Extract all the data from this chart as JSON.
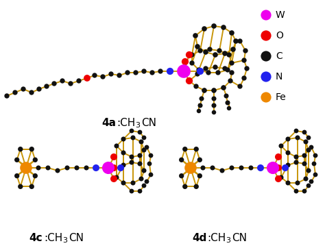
{
  "background_color": "#ffffff",
  "legend_items": [
    {
      "label": "W",
      "color": "#ee00ee"
    },
    {
      "label": "O",
      "color": "#ee0000"
    },
    {
      "label": "C",
      "color": "#111111"
    },
    {
      "label": "N",
      "color": "#2222ee"
    },
    {
      "label": "Fe",
      "color": "#ee8800"
    }
  ],
  "bond_color": "#c8960a",
  "bond_lw": 1.4,
  "figsize": [
    4.74,
    3.62
  ],
  "dpi": 100
}
